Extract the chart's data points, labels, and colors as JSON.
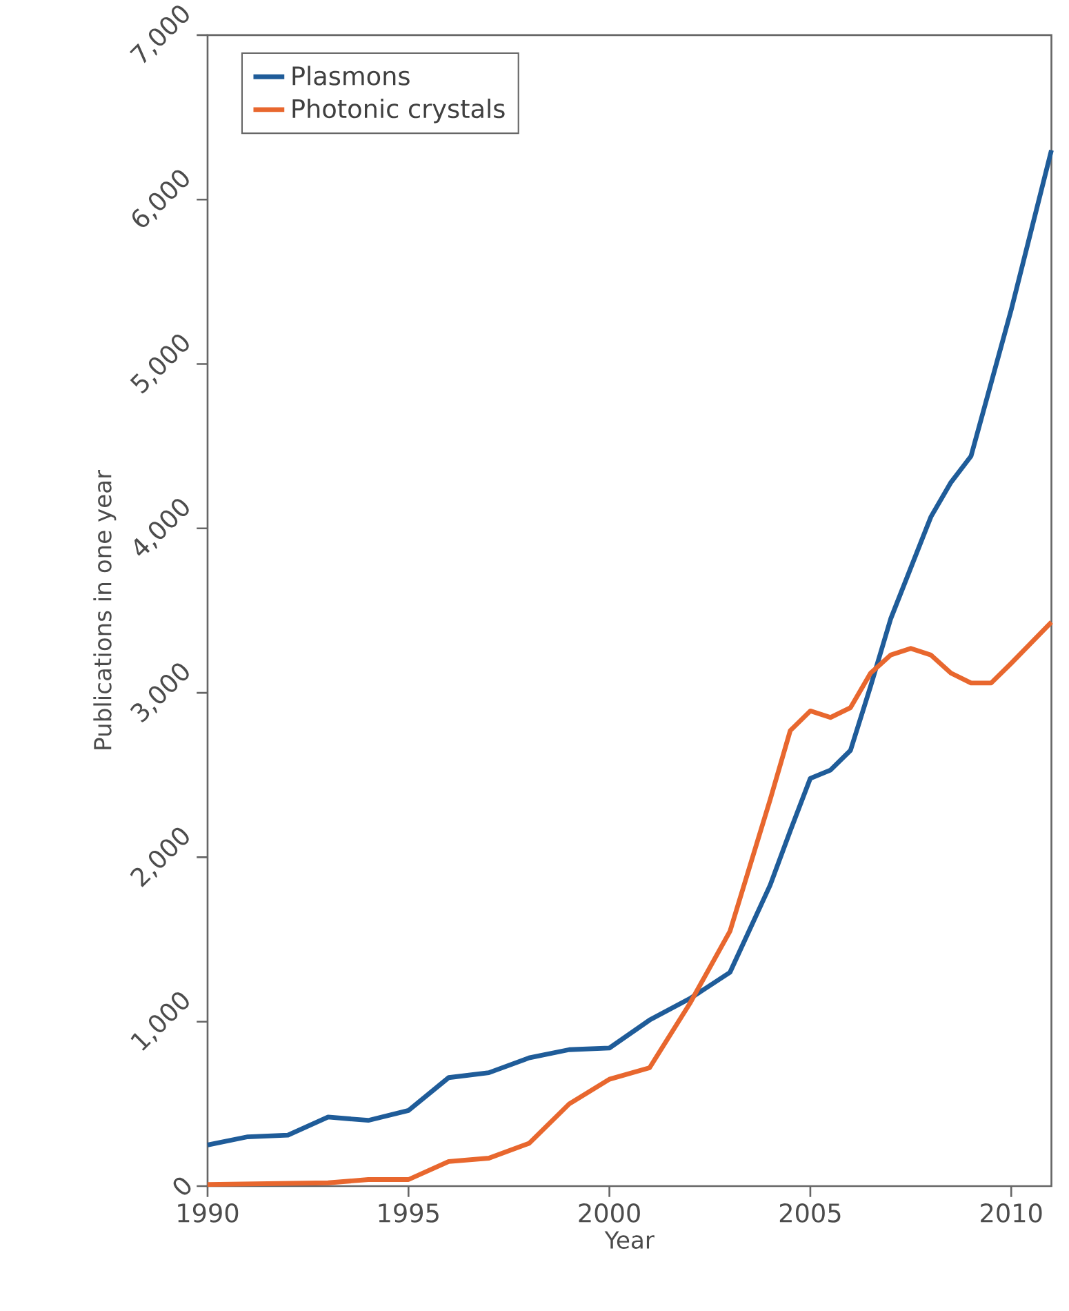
{
  "chart_data": {
    "type": "line",
    "xlabel": "Year",
    "ylabel": "Publications in one year",
    "xlim": [
      1990,
      2011
    ],
    "xticks": [
      1990,
      1995,
      2000,
      2005,
      2010
    ],
    "ylim": [
      0,
      7000
    ],
    "yticks": [
      0,
      {
        "value": 1000,
        "label": "1,000"
      },
      {
        "value": 2000,
        "label": "2,000"
      },
      {
        "value": 3000,
        "label": "3,000"
      },
      {
        "value": 4000,
        "label": "4,000"
      },
      {
        "value": 5000,
        "label": "5,000"
      },
      {
        "value": 6000,
        "label": "6,000"
      },
      {
        "value": 7000,
        "label": "7,000"
      }
    ],
    "grid": false,
    "legend": "top left",
    "line_style": "solid",
    "marker": "none",
    "series": [
      {
        "name": "Plasmons",
        "color": "#1f5c99",
        "x": [
          1990,
          1991,
          1992,
          1993,
          1994,
          1995,
          1996,
          1997,
          1998,
          1999,
          2000,
          2001,
          2002,
          2003,
          2004,
          2004.5,
          2005,
          2005.5,
          2006,
          2006.5,
          2007,
          2008,
          2008.5,
          2009,
          2010,
          2011
        ],
        "values": [
          250,
          300,
          310,
          420,
          400,
          460,
          660,
          690,
          780,
          830,
          840,
          1010,
          1140,
          1300,
          1830,
          2160,
          2480,
          2530,
          2650,
          3040,
          3450,
          4070,
          4280,
          4440,
          5330,
          6300
        ]
      },
      {
        "name": "Photonic crystals",
        "color": "#e8672e",
        "x": [
          1990,
          1993,
          1994,
          1995,
          1996,
          1997,
          1998,
          1999,
          2000,
          2001,
          2002,
          2003,
          2004,
          2004.5,
          2005,
          2005.5,
          2006,
          2006.5,
          2007,
          2007.5,
          2008,
          2008.5,
          2009,
          2009.5,
          2010,
          2011
        ],
        "values": [
          10,
          20,
          40,
          40,
          150,
          170,
          260,
          500,
          650,
          720,
          1110,
          1550,
          2350,
          2770,
          2890,
          2850,
          2910,
          3120,
          3230,
          3270,
          3230,
          3120,
          3060,
          3060,
          3180,
          3430
        ]
      }
    ]
  }
}
